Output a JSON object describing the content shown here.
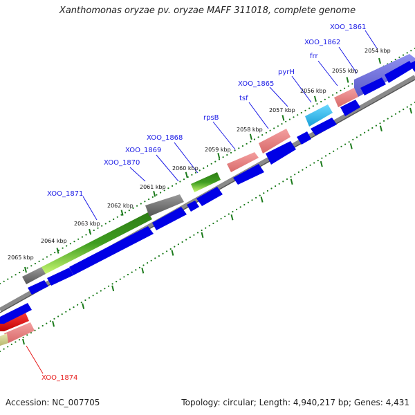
{
  "title": "Xanthomonas oryzae pv. oryzae MAFF 311018, complete genome",
  "footer": {
    "accession": "Accession: NC_007705",
    "summary": "Topology: circular; Length: 4,940,217 bp; Genes: 4,431"
  },
  "colors": {
    "cds": "#0000e6",
    "gene_gray": "#666666",
    "gene_green": "#3a8f1a",
    "gene_lightgreen": "#b8f060",
    "gene_pink": "#e88080",
    "gene_cyan": "#22b8e8",
    "gene_purple": "#7070d8",
    "gene_red": "#ee1111",
    "tick_green": "#1a7a1a",
    "label_blue": "#1a1ae6",
    "label_red": "#e61a1a",
    "backbone": "#8a8a8a"
  },
  "kbp_labels": [
    "2054 kbp",
    "2055 kbp",
    "2056 kbp",
    "2057 kbp",
    "2058 kbp",
    "2059 kbp",
    "2060 kbp",
    "2061 kbp",
    "2062 kbp",
    "2063 kbp",
    "2064 kbp",
    "2065 kbp"
  ],
  "gene_labels": [
    "XOO_1861",
    "XOO_1862",
    "frr",
    "pyrH",
    "XOO_1865",
    "tsf",
    "rpsB",
    "XOO_1868",
    "XOO_1869",
    "XOO_1870",
    "XOO_1871",
    "XOO_1874"
  ]
}
